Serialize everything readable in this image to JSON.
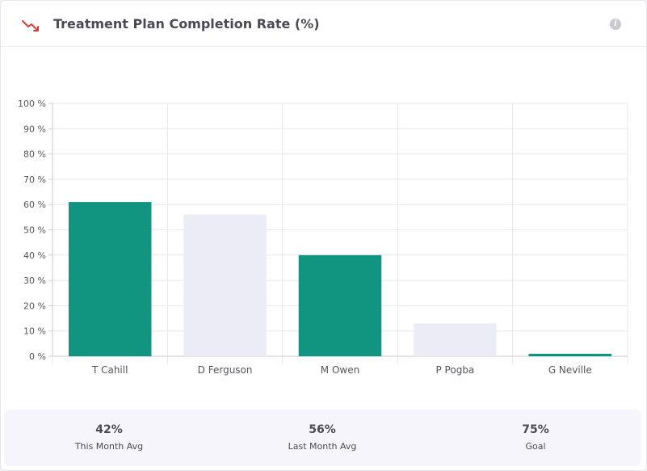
{
  "header": {
    "title": "Treatment Plan Completion Rate (%)",
    "info_icon": "info-icon",
    "trend_icon": "trend-down-icon"
  },
  "colors": {
    "accent": "#129580",
    "muted_bar": "#ececf6",
    "trend_red": "#e03a3a"
  },
  "chart_data": {
    "type": "bar",
    "categories": [
      "T Cahill",
      "D Ferguson",
      "M Owen",
      "P Pogba",
      "G Neville"
    ],
    "values": [
      61,
      56,
      40,
      13,
      1
    ],
    "bar_colors": [
      "#129580",
      "#ececf6",
      "#129580",
      "#ececf6",
      "#129580"
    ],
    "y_ticks": [
      "0 %",
      "10 %",
      "20 %",
      "30 %",
      "40 %",
      "50 %",
      "60 %",
      "70 %",
      "80 %",
      "90 %",
      "100 %"
    ],
    "ylim": [
      0,
      100
    ],
    "grid": true,
    "title": "",
    "xlabel": "",
    "ylabel": ""
  },
  "footer": {
    "stats": [
      {
        "value": "42%",
        "label": "This Month Avg"
      },
      {
        "value": "56%",
        "label": "Last Month Avg"
      },
      {
        "value": "75%",
        "label": "Goal"
      }
    ]
  }
}
